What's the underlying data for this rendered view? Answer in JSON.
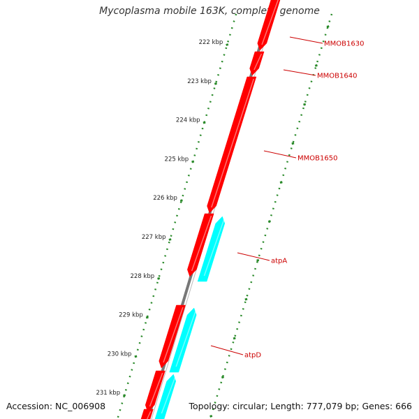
{
  "title": "Mycoplasma mobile 163K, complete genome",
  "footer": {
    "accession": "Accession: NC_006908",
    "topology": "Topology: circular; Length: 777,079 bp; Genes: 666"
  },
  "colors": {
    "forward_gene": "#ff0000",
    "reverse_gene": "#00ffff",
    "backbone": "#777777",
    "scale_dots": "#2a8a2a",
    "tick_marks": "#2a8a2a",
    "label_text": "#cc0000",
    "tick_text": "#222222"
  },
  "scale": {
    "ticks": [
      "222 kbp",
      "223 kbp",
      "224 kbp",
      "225 kbp",
      "226 kbp",
      "227 kbp",
      "228 kbp",
      "229 kbp",
      "230 kbp",
      "231 kbp"
    ]
  },
  "gene_labels": [
    "MMOB1630",
    "MMOB1640",
    "MMOB1650",
    "atpA",
    "atpD"
  ]
}
